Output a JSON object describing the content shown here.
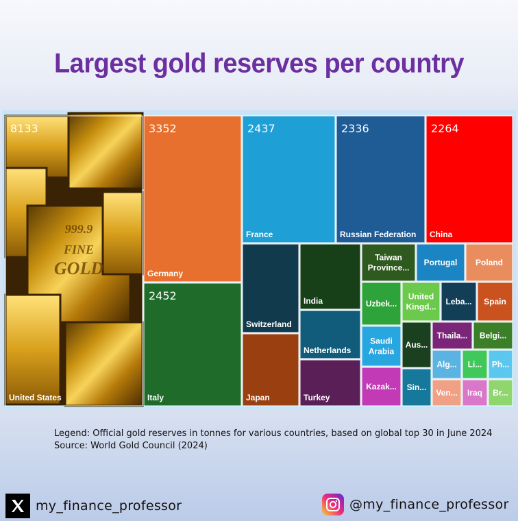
{
  "title": "Largest gold reserves per country",
  "legend_line1": "Legend: Official gold reserves in tonnes for various countries, based on global top 30 in June 2024",
  "legend_line2": "Source: World Gold Council (2024)",
  "social": {
    "x_handle": "my_finance_professor",
    "instagram_handle": "@my_finance_professor"
  },
  "image": {
    "bar_stamp_1": "999.9",
    "bar_stamp_2": "FINE",
    "bar_stamp_3": "GOLD"
  },
  "chart_data": {
    "type": "treemap",
    "unit": "tonnes",
    "items": [
      {
        "label": "United States",
        "value": 8133,
        "value_label": "8133",
        "color": "#b8860b"
      },
      {
        "label": "Germany",
        "value": 3352,
        "value_label": "3352",
        "color": "#e8702e"
      },
      {
        "label": "Italy",
        "value": 2452,
        "value_label": "2452",
        "color": "#1f6b2a"
      },
      {
        "label": "France",
        "value": 2437,
        "value_label": "2437",
        "color": "#1e9fd6"
      },
      {
        "label": "Russian Federation",
        "value": 2336,
        "value_label": "2336",
        "color": "#1f5b95"
      },
      {
        "label": "China",
        "value": 2264,
        "value_label": "2264",
        "color": "#fe0000"
      },
      {
        "label": "Switzerland",
        "color": "#123a4d"
      },
      {
        "label": "Japan",
        "color": "#9a3f10"
      },
      {
        "label": "India",
        "color": "#173f18"
      },
      {
        "label": "Netherlands",
        "color": "#105c7a"
      },
      {
        "label": "Turkey",
        "color": "#5b1f57"
      },
      {
        "label": "Taiwan Province...",
        "color": "#2f5a1f"
      },
      {
        "label": "Portugal",
        "color": "#1b85c4"
      },
      {
        "label": "Poland",
        "color": "#e98c5e"
      },
      {
        "label": "Uzbek...",
        "color": "#2ea33a"
      },
      {
        "label": "United Kingd...",
        "color": "#6bc94b"
      },
      {
        "label": "Leba...",
        "color": "#123e58"
      },
      {
        "label": "Spain",
        "color": "#c9521e"
      },
      {
        "label": "Saudi Arabia",
        "color": "#27a6e0"
      },
      {
        "label": "Aus...",
        "color": "#1b4020"
      },
      {
        "label": "Thaila...",
        "color": "#7a2577"
      },
      {
        "label": "Belgi...",
        "color": "#3c7f29"
      },
      {
        "label": "Kazak...",
        "color": "#c23ab5"
      },
      {
        "label": "Sin...",
        "color": "#16799c"
      },
      {
        "label": "Alg...",
        "color": "#5ab3e0"
      },
      {
        "label": "Li...",
        "color": "#40c85a"
      },
      {
        "label": "Ph...",
        "color": "#5cc7ee"
      },
      {
        "label": "Ven...",
        "color": "#f0a084"
      },
      {
        "label": "Iraq",
        "color": "#d977c8"
      },
      {
        "label": "Br...",
        "color": "#8ed66d"
      }
    ]
  }
}
